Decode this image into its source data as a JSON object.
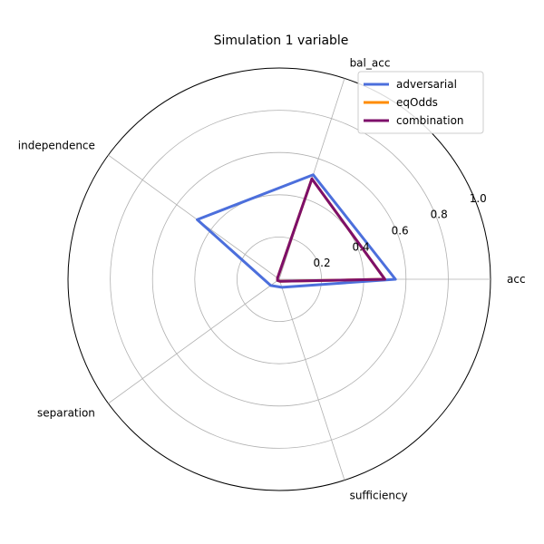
{
  "chart_data": {
    "type": "radar",
    "title": "Simulation 1 variable",
    "axes": [
      "acc",
      "bal_acc",
      "independence",
      "separation",
      "sufficiency"
    ],
    "rlim": [
      0,
      1.0
    ],
    "rticks": [
      "0.2",
      "0.4",
      "0.6",
      "0.8",
      "1.0"
    ],
    "rtick_values": [
      0.2,
      0.4,
      0.6,
      0.8,
      1.0
    ],
    "grid": true,
    "legend_position": "top-right",
    "series": [
      {
        "name": "adversarial",
        "color": "#4c6fdc",
        "values": [
          0.55,
          0.52,
          0.48,
          0.05,
          0.04
        ]
      },
      {
        "name": "eqOdds",
        "color": "#ff8c00",
        "values": [
          0.5,
          0.5,
          0.01,
          0.01,
          0.01
        ]
      },
      {
        "name": "combination",
        "color": "#7d0f6a",
        "values": [
          0.5,
          0.5,
          0.01,
          0.01,
          0.01
        ]
      }
    ]
  }
}
